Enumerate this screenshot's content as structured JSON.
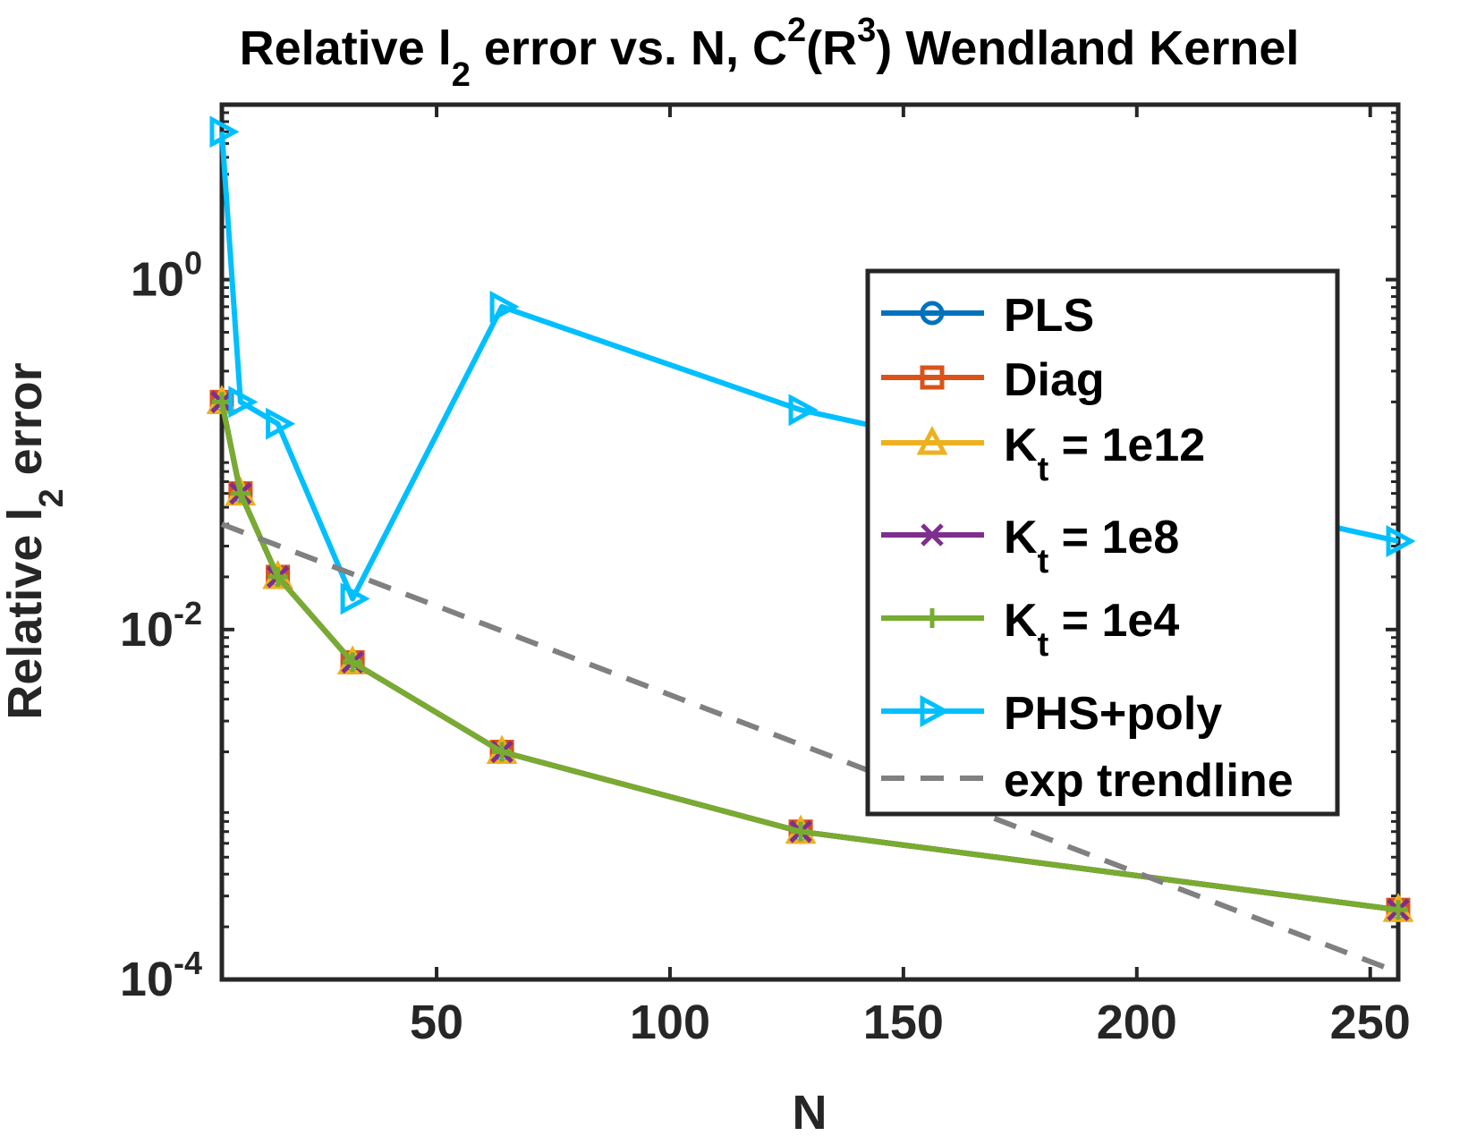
{
  "chart_data": {
    "type": "line",
    "title": {
      "before": "Relative l",
      "sub": "2",
      "middle": " error vs. N, C",
      "sup1": "2",
      "paren_open": "(R",
      "sup2": "3",
      "after": ") Wendland Kernel"
    },
    "xlabel": "N",
    "ylabel": {
      "before": "Relative l",
      "sub": "2",
      "after": " error"
    },
    "xlim": [
      4,
      256
    ],
    "ylim": [
      0.0001,
      10
    ],
    "yscale": "log",
    "xticks": [
      {
        "value": 50,
        "label": "50"
      },
      {
        "value": 100,
        "label": "100"
      },
      {
        "value": 150,
        "label": "150"
      },
      {
        "value": 200,
        "label": "200"
      },
      {
        "value": 250,
        "label": "250"
      }
    ],
    "yticks": [
      {
        "value": 1,
        "base": "10",
        "exp": "0"
      },
      {
        "value": 0.01,
        "base": "10",
        "exp": "-2"
      },
      {
        "value": 0.0001,
        "base": "10",
        "exp": "-4"
      }
    ],
    "grid": false,
    "legend_position": "right",
    "x": [
      4,
      8,
      16,
      32,
      64,
      128,
      256
    ],
    "series": [
      {
        "name": "PLS",
        "parts": [
          "PLS"
        ],
        "sub": "",
        "color": "#0072BD",
        "marker": "circle",
        "dashed": false,
        "values": [
          0.2,
          0.06,
          0.02,
          0.0065,
          0.002,
          0.0007,
          0.00025
        ]
      },
      {
        "name": "Diag",
        "parts": [
          "Diag"
        ],
        "sub": "",
        "color": "#D95319",
        "marker": "square",
        "dashed": false,
        "values": [
          0.2,
          0.06,
          0.02,
          0.0065,
          0.002,
          0.0007,
          0.00025
        ]
      },
      {
        "name": "K_t = 1e12",
        "parts": [
          "K",
          "t",
          " = 1e12"
        ],
        "color": "#EDB120",
        "marker": "triangle",
        "dashed": false,
        "values": [
          0.2,
          0.06,
          0.02,
          0.0065,
          0.002,
          0.0007,
          0.00025
        ]
      },
      {
        "name": "K_t = 1e8",
        "parts": [
          "K",
          "t",
          " = 1e8"
        ],
        "color": "#7E2F8E",
        "marker": "x",
        "dashed": false,
        "values": [
          0.2,
          0.06,
          0.02,
          0.0065,
          0.002,
          0.0007,
          0.00025
        ]
      },
      {
        "name": "K_t = 1e4",
        "parts": [
          "K",
          "t",
          " = 1e4"
        ],
        "color": "#77AC30",
        "marker": "plus",
        "dashed": false,
        "values": [
          0.2,
          0.06,
          0.02,
          0.0065,
          0.002,
          0.0007,
          0.00025
        ]
      },
      {
        "name": "PHS+poly",
        "parts": [
          "PHS+poly"
        ],
        "color": "#00BFFF",
        "marker": "triangle-right",
        "dashed": false,
        "values": [
          7,
          0.2,
          0.15,
          0.015,
          0.7,
          0.18,
          0.032
        ]
      },
      {
        "name": "exp trendline",
        "parts": [
          "exp trendline"
        ],
        "color": "#808080",
        "marker": "none",
        "dashed": true,
        "x": [
          4,
          256
        ],
        "values": [
          0.04,
          0.00011
        ]
      }
    ]
  }
}
